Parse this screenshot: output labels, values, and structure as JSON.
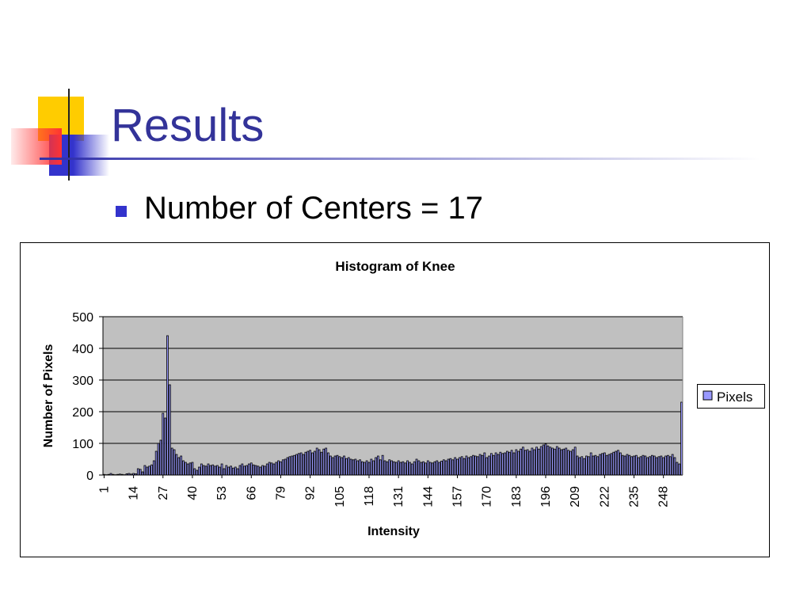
{
  "slide": {
    "title": "Results",
    "bullets": [
      "Number of Centers = 17"
    ]
  },
  "chart_data": {
    "type": "bar",
    "title": "Histogram of Knee",
    "x_label": "Intensity",
    "y_label": "Number of Pixels",
    "categories": [
      "1",
      null,
      null,
      null,
      null,
      null,
      null,
      null,
      null,
      null,
      null,
      null,
      null,
      "14",
      null,
      null,
      null,
      null,
      null,
      null,
      null,
      null,
      null,
      null,
      null,
      null,
      "27",
      null,
      null,
      null,
      null,
      null,
      null,
      null,
      null,
      null,
      null,
      null,
      null,
      "40",
      null,
      null,
      null,
      null,
      null,
      null,
      null,
      null,
      null,
      null,
      null,
      null,
      "53",
      null,
      null,
      null,
      null,
      null,
      null,
      null,
      null,
      null,
      null,
      null,
      null,
      "66",
      null,
      null,
      null,
      null,
      null,
      null,
      null,
      null,
      null,
      null,
      null,
      null,
      "79",
      null,
      null,
      null,
      null,
      null,
      null,
      null,
      null,
      null,
      null,
      null,
      null,
      "92",
      null,
      null,
      null,
      null,
      null,
      null,
      null,
      null,
      null,
      null,
      null,
      null,
      "105",
      null,
      null,
      null,
      null,
      null,
      null,
      null,
      null,
      null,
      null,
      null,
      null,
      "118",
      null,
      null,
      null,
      null,
      null,
      null,
      null,
      null,
      null,
      null,
      null,
      null,
      "131",
      null,
      null,
      null,
      null,
      null,
      null,
      null,
      null,
      null,
      null,
      null,
      null,
      "144",
      null,
      null,
      null,
      null,
      null,
      null,
      null,
      null,
      null,
      null,
      null,
      null,
      "157",
      null,
      null,
      null,
      null,
      null,
      null,
      null,
      null,
      null,
      null,
      null,
      null,
      "170",
      null,
      null,
      null,
      null,
      null,
      null,
      null,
      null,
      null,
      null,
      null,
      null,
      "183",
      null,
      null,
      null,
      null,
      null,
      null,
      null,
      null,
      null,
      null,
      null,
      null,
      "196",
      null,
      null,
      null,
      null,
      null,
      null,
      null,
      null,
      null,
      null,
      null,
      null,
      "209",
      null,
      null,
      null,
      null,
      null,
      null,
      null,
      null,
      null,
      null,
      null,
      null,
      "222",
      null,
      null,
      null,
      null,
      null,
      null,
      null,
      null,
      null,
      null,
      null,
      null,
      "235",
      null,
      null,
      null,
      null,
      null,
      null,
      null,
      null,
      null,
      null,
      null,
      null,
      "248",
      null,
      null,
      null,
      null,
      null,
      null,
      null,
      null
    ],
    "series": [
      {
        "name": "Pixels",
        "color": "#9999ff",
        "values": [
          2,
          1,
          2,
          5,
          2,
          1,
          2,
          3,
          2,
          1,
          4,
          5,
          3,
          5,
          4,
          20,
          18,
          10,
          30,
          25,
          28,
          32,
          45,
          75,
          100,
          110,
          195,
          180,
          440,
          285,
          85,
          80,
          65,
          55,
          60,
          45,
          40,
          35,
          38,
          40,
          20,
          15,
          25,
          35,
          30,
          28,
          35,
          30,
          32,
          28,
          30,
          25,
          35,
          20,
          30,
          25,
          28,
          22,
          25,
          20,
          30,
          35,
          28,
          30,
          35,
          38,
          32,
          30,
          28,
          25,
          30,
          28,
          35,
          40,
          38,
          35,
          40,
          45,
          42,
          48,
          50,
          55,
          58,
          60,
          62,
          65,
          68,
          70,
          65,
          72,
          75,
          78,
          70,
          75,
          85,
          80,
          72,
          82,
          85,
          70,
          60,
          55,
          60,
          62,
          58,
          55,
          60,
          52,
          55,
          50,
          48,
          50,
          45,
          48,
          42,
          40,
          45,
          40,
          50,
          45,
          55,
          60,
          48,
          62,
          45,
          42,
          48,
          45,
          42,
          40,
          45,
          40,
          42,
          38,
          45,
          40,
          35,
          42,
          50,
          45,
          40,
          42,
          38,
          45,
          40,
          38,
          42,
          45,
          40,
          44,
          48,
          45,
          50,
          52,
          48,
          55,
          50,
          55,
          58,
          52,
          60,
          55,
          58,
          62,
          60,
          58,
          65,
          62,
          70,
          55,
          60,
          68,
          62,
          70,
          65,
          72,
          68,
          70,
          75,
          72,
          78,
          70,
          80,
          75,
          82,
          88,
          78,
          80,
          75,
          85,
          80,
          88,
          82,
          90,
          95,
          98,
          92,
          88,
          85,
          82,
          90,
          85,
          80,
          82,
          85,
          78,
          75,
          80,
          88,
          60,
          55,
          58,
          52,
          60,
          58,
          70,
          60,
          62,
          58,
          65,
          68,
          70,
          62,
          65,
          68,
          72,
          75,
          78,
          70,
          62,
          60,
          65,
          62,
          58,
          60,
          62,
          55,
          58,
          62,
          60,
          55,
          58,
          62,
          60,
          55,
          58,
          60,
          55,
          60,
          62,
          58,
          65,
          55,
          40,
          35,
          230
        ]
      }
    ],
    "ylim": [
      0,
      500
    ],
    "yticks": [
      0,
      100,
      200,
      300,
      400,
      500
    ],
    "grid": true,
    "legend": "right"
  }
}
